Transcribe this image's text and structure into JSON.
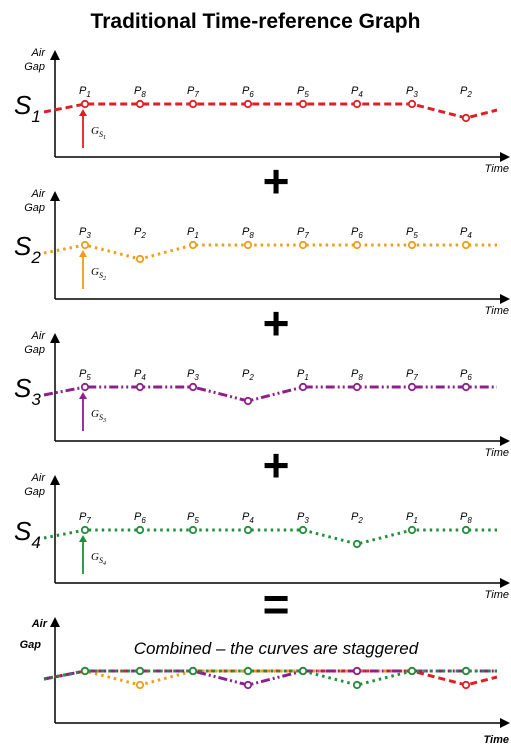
{
  "title": "Traditional Time-reference Graph",
  "axis_labels": {
    "y_line1": "Air",
    "y_line2": "Gap",
    "x": "Time"
  },
  "operators": [
    "+",
    "+",
    "+",
    "="
  ],
  "combined_caption": "Combined – the curves are staggered",
  "sensors": [
    {
      "id": "S1",
      "sub": "1",
      "color": "#e01e24",
      "style": "dashed",
      "gap_sub": "S1",
      "points": [
        {
          "label": "P",
          "sub": "1",
          "dip": false
        },
        {
          "label": "P",
          "sub": "8",
          "dip": false
        },
        {
          "label": "P",
          "sub": "7",
          "dip": false
        },
        {
          "label": "P",
          "sub": "6",
          "dip": false
        },
        {
          "label": "P",
          "sub": "5",
          "dip": false
        },
        {
          "label": "P",
          "sub": "4",
          "dip": false
        },
        {
          "label": "P",
          "sub": "3",
          "dip": false
        },
        {
          "label": "P",
          "sub": "2",
          "dip": true
        }
      ]
    },
    {
      "id": "S2",
      "sub": "2",
      "color": "#f39c19",
      "style": "dotted",
      "gap_sub": "S2",
      "points": [
        {
          "label": "P",
          "sub": "3",
          "dip": false
        },
        {
          "label": "P",
          "sub": "2",
          "dip": true
        },
        {
          "label": "P",
          "sub": "1",
          "dip": false
        },
        {
          "label": "P",
          "sub": "8",
          "dip": false
        },
        {
          "label": "P",
          "sub": "7",
          "dip": false
        },
        {
          "label": "P",
          "sub": "6",
          "dip": false
        },
        {
          "label": "P",
          "sub": "5",
          "dip": false
        },
        {
          "label": "P",
          "sub": "4",
          "dip": false
        }
      ]
    },
    {
      "id": "S3",
      "sub": "3",
      "color": "#8e1f8c",
      "style": "dashdotdot",
      "gap_sub": "S3",
      "points": [
        {
          "label": "P",
          "sub": "5",
          "dip": false
        },
        {
          "label": "P",
          "sub": "4",
          "dip": false
        },
        {
          "label": "P",
          "sub": "3",
          "dip": false
        },
        {
          "label": "P",
          "sub": "2",
          "dip": true
        },
        {
          "label": "P",
          "sub": "1",
          "dip": false
        },
        {
          "label": "P",
          "sub": "8",
          "dip": false
        },
        {
          "label": "P",
          "sub": "7",
          "dip": false
        },
        {
          "label": "P",
          "sub": "6",
          "dip": false
        }
      ]
    },
    {
      "id": "S4",
      "sub": "4",
      "color": "#1f8f3a",
      "style": "dotted",
      "gap_sub": "S4",
      "points": [
        {
          "label": "P",
          "sub": "7",
          "dip": false
        },
        {
          "label": "P",
          "sub": "6",
          "dip": false
        },
        {
          "label": "P",
          "sub": "5",
          "dip": false
        },
        {
          "label": "P",
          "sub": "4",
          "dip": false
        },
        {
          "label": "P",
          "sub": "3",
          "dip": false
        },
        {
          "label": "P",
          "sub": "2",
          "dip": true
        },
        {
          "label": "P",
          "sub": "1",
          "dip": false
        },
        {
          "label": "P",
          "sub": "8",
          "dip": false
        }
      ]
    }
  ]
}
